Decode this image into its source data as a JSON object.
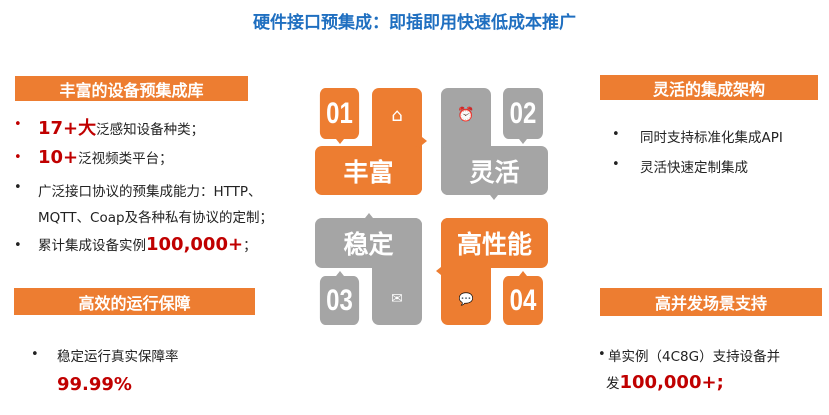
{
  "title": "硬件接口预集成：即插即用快速低成本推广",
  "colors": {
    "accent": "#ED7D31",
    "gray": "#A5A5A5",
    "highlight": "#C00000",
    "title": "#1F6FC0"
  },
  "left_top": {
    "header": "丰富的设备预集成库",
    "items": [
      {
        "strong": "17+大",
        "text": "泛感知设备种类；"
      },
      {
        "strong": "10+",
        "text": "泛视频类平台；"
      },
      {
        "text": "广泛接口协议的预集成能力：HTTP、",
        "text2": "MQTT、Coap及各种私有协议的定制；"
      },
      {
        "text": "累计集成设备实例",
        "strong": "100,000+",
        "tail": "；"
      }
    ]
  },
  "right_top": {
    "header": "灵活的集成架构",
    "items": [
      "同时支持标准化集成API",
      "灵活快速定制集成"
    ]
  },
  "left_bottom": {
    "header": "高效的运行保障",
    "item": "稳定运行真实保障率",
    "strong": "99.99%"
  },
  "right_bottom": {
    "header": "高并发场景支持",
    "item": "单实例（4C8G）支持设备并",
    "item2_prefix": "发",
    "strong": "100,000+;"
  },
  "center": {
    "blocks": [
      {
        "num": "01",
        "word": "丰富",
        "icon": "home-icon",
        "glyph": "⌂"
      },
      {
        "num": "02",
        "word": "灵活",
        "icon": "alarm-clock-icon",
        "glyph": "⏰"
      },
      {
        "num": "03",
        "word": "稳定",
        "icon": "envelope-icon",
        "glyph": "✉"
      },
      {
        "num": "04",
        "word": "高性能",
        "icon": "chat-icon",
        "glyph": "💬"
      }
    ]
  }
}
